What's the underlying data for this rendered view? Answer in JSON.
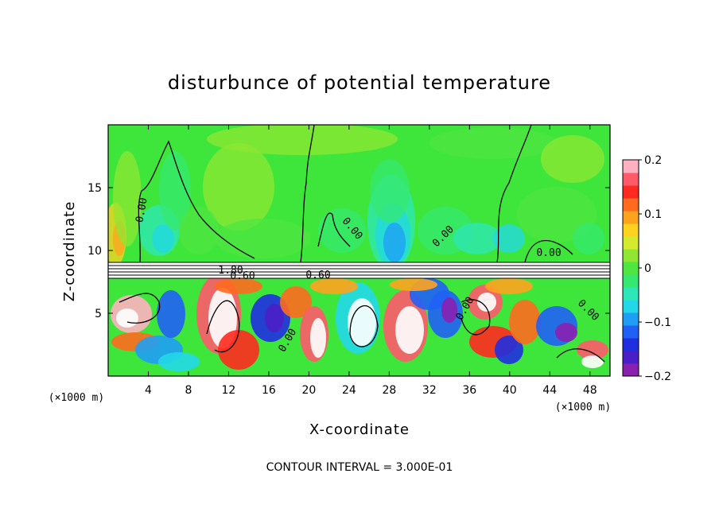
{
  "chart_data": {
    "type": "heatmap",
    "title": "disturbunce of potential temperature",
    "xlabel": "X-coordinate",
    "ylabel": "Z-coordinate",
    "x_unit": "(×1000 m)",
    "y_unit": "(×1000 m)",
    "xlim": [
      0,
      50
    ],
    "ylim": [
      0,
      20
    ],
    "x_ticks": [
      4,
      8,
      12,
      16,
      20,
      24,
      28,
      32,
      36,
      40,
      44,
      48
    ],
    "y_ticks": [
      5,
      10,
      15
    ],
    "colorbar": {
      "range": [
        -0.2,
        0.2
      ],
      "tick_values": [
        0.2,
        0.1,
        0,
        -0.1,
        -0.2
      ],
      "tick_labels": [
        "0.2",
        "0.1",
        "0",
        "−0.1",
        "−0.2"
      ],
      "colors": [
        "#8a1fb0",
        "#4b1fc8",
        "#1f2fe0",
        "#2060f5",
        "#1f9ef5",
        "#22d8e8",
        "#2ee7b8",
        "#36e870",
        "#4fe640",
        "#8fe733",
        "#d4ea2e",
        "#ffd21f",
        "#ffa31f",
        "#ff6a1f",
        "#ff2a1f",
        "#ff5a6a",
        "#ffb0c0"
      ]
    },
    "contour_labels": [
      "0.00",
      "0.00",
      "0.00",
      "0.00",
      "0.00",
      "0.00",
      "0.00",
      "0.60",
      "0.60",
      "1.80"
    ],
    "note": "CONTOUR INTERVAL = 3.000E-01"
  }
}
